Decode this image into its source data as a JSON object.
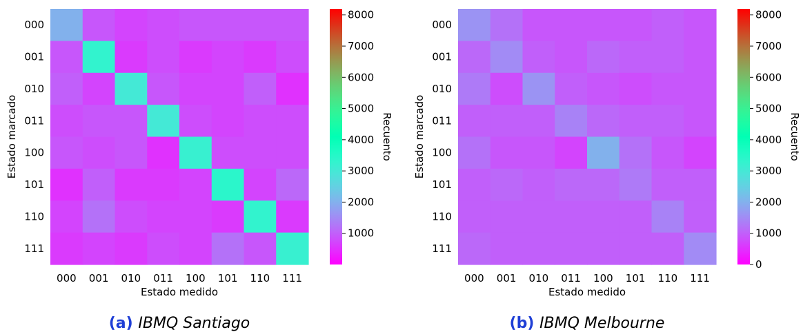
{
  "chart_data": [
    {
      "type": "heatmap",
      "panel_letter": "(a)",
      "caption": "IBMQ Santiago",
      "xlabel": "Estado medido",
      "ylabel": "Estado marcado",
      "colorbar_label": "Recuento",
      "colormap": "rainbow",
      "vmin": 0,
      "vmax": 8192,
      "x_categories": [
        "000",
        "001",
        "010",
        "011",
        "100",
        "101",
        "110",
        "111"
      ],
      "y_categories": [
        "000",
        "001",
        "010",
        "011",
        "100",
        "101",
        "110",
        "111"
      ],
      "colorbar_ticks": [
        "1000",
        "2000",
        "3000",
        "4000",
        "5000",
        "6000",
        "7000",
        "8000"
      ],
      "values": [
        [
          2000,
          900,
          700,
          800,
          900,
          900,
          900,
          900
        ],
        [
          900,
          3300,
          600,
          800,
          600,
          700,
          600,
          800
        ],
        [
          1000,
          700,
          3000,
          900,
          700,
          700,
          1000,
          500
        ],
        [
          800,
          900,
          900,
          3000,
          800,
          700,
          800,
          800
        ],
        [
          900,
          800,
          900,
          500,
          3200,
          800,
          800,
          800
        ],
        [
          500,
          1000,
          600,
          600,
          700,
          3400,
          700,
          1100
        ],
        [
          700,
          1200,
          800,
          700,
          700,
          600,
          3300,
          600
        ],
        [
          600,
          700,
          600,
          800,
          700,
          1200,
          900,
          3200
        ]
      ]
    },
    {
      "type": "heatmap",
      "panel_letter": "(b)",
      "caption": "IBMQ Melbourne",
      "xlabel": "Estado medido",
      "ylabel": "Estado marcado",
      "colorbar_label": "Recuento",
      "colormap": "rainbow",
      "vmin": 0,
      "vmax": 8192,
      "x_categories": [
        "000",
        "001",
        "010",
        "011",
        "100",
        "101",
        "110",
        "111"
      ],
      "y_categories": [
        "000",
        "001",
        "010",
        "011",
        "100",
        "101",
        "110",
        "111"
      ],
      "colorbar_ticks": [
        "0",
        "1000",
        "2000",
        "3000",
        "4000",
        "5000",
        "6000",
        "7000",
        "8000"
      ],
      "values": [
        [
          1600,
          1200,
          900,
          900,
          900,
          900,
          1000,
          900
        ],
        [
          1100,
          1500,
          1000,
          900,
          1100,
          1000,
          1000,
          900
        ],
        [
          1300,
          800,
          1600,
          1000,
          900,
          800,
          900,
          900
        ],
        [
          1000,
          1000,
          1000,
          1400,
          1100,
          1000,
          1000,
          900
        ],
        [
          1200,
          900,
          900,
          700,
          2000,
          1200,
          900,
          700
        ],
        [
          1000,
          1100,
          1000,
          1100,
          1100,
          1300,
          1000,
          1000
        ],
        [
          1000,
          1000,
          1000,
          1000,
          1000,
          1000,
          1400,
          1000
        ],
        [
          1100,
          1000,
          1000,
          1000,
          1000,
          1000,
          1000,
          1500
        ]
      ]
    }
  ]
}
